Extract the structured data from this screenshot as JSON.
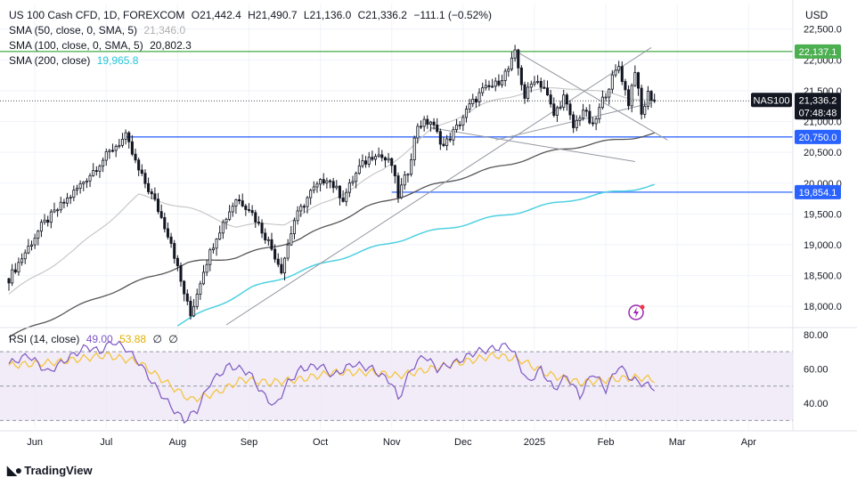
{
  "header": {
    "symbol": "US 100 Cash CFD, 1D, FOREXCOM",
    "open": "O21,442.4",
    "high": "H21,490.7",
    "low": "L21,136.0",
    "close": "C21,336.2",
    "change": "−111.1 (−0.52%)",
    "sma50_label": "SMA (50, close, 0, SMA, 5)",
    "sma50_value": "21,346.0",
    "sma100_label": "SMA (100, close, 0, SMA, 5)",
    "sma100_value": "20,802.3",
    "sma200_label": "SMA (200, close)",
    "sma200_value": "19,965.8",
    "rsi_label": "RSI (14, close)",
    "rsi_value": "49.00",
    "rsi_ma_value": "53.88",
    "rsi_extra1": "∅",
    "rsi_extra2": "∅",
    "currency": "USD"
  },
  "colors": {
    "up": "#131722",
    "down": "#131722",
    "green_line": "#4caf50",
    "blue_line": "#2962ff",
    "sma50": "#c8c8c8",
    "sma100": "#555555",
    "sma200": "#4dd0e1",
    "rsi": "#7e57c2",
    "rsi_ma": "#f5c542",
    "rsi_bg": "#ede7f6",
    "nas_label_bg": "#131722"
  },
  "chart_data": [
    {
      "type": "candlestick",
      "title": "US 100 Cash CFD, 1D, FOREXCOM",
      "x_tick_labels": [
        "Jun",
        "Jul",
        "Aug",
        "Sep",
        "Oct",
        "Nov",
        "Dec",
        "2025",
        "Feb",
        "Mar",
        "Apr"
      ],
      "x_tick_index": [
        8,
        30,
        52,
        74,
        96,
        118,
        140,
        162,
        184,
        206,
        228
      ],
      "ylim": [
        17700,
        22900
      ],
      "y_ticks": [
        18000,
        18500,
        19000,
        19500,
        20000,
        20500,
        21000,
        21500,
        22000,
        22500
      ],
      "y_tick_labels": [
        "18,000.0",
        "18,500.0",
        "19,000.0",
        "19,500.0",
        "20,000.0",
        "20,500.0",
        "21,000.0",
        "21,500.0",
        "22,000.0",
        "22,500.0"
      ],
      "key_points": [
        [
          0,
          18450
        ],
        [
          10,
          19300
        ],
        [
          20,
          19850
        ],
        [
          32,
          20560
        ],
        [
          36,
          20750
        ],
        [
          40,
          20200
        ],
        [
          45,
          19700
        ],
        [
          50,
          19050
        ],
        [
          53,
          18400
        ],
        [
          56,
          17850
        ],
        [
          60,
          18600
        ],
        [
          64,
          19150
        ],
        [
          70,
          19750
        ],
        [
          74,
          19600
        ],
        [
          80,
          19050
        ],
        [
          84,
          18600
        ],
        [
          88,
          19400
        ],
        [
          93,
          19850
        ],
        [
          98,
          20100
        ],
        [
          103,
          19750
        ],
        [
          108,
          20250
        ],
        [
          113,
          20500
        ],
        [
          118,
          20300
        ],
        [
          120,
          19800
        ],
        [
          123,
          20200
        ],
        [
          126,
          20950
        ],
        [
          130,
          21000
        ],
        [
          134,
          20600
        ],
        [
          138,
          20900
        ],
        [
          142,
          21250
        ],
        [
          146,
          21500
        ],
        [
          150,
          21600
        ],
        [
          154,
          21850
        ],
        [
          156,
          22100
        ],
        [
          159,
          21400
        ],
        [
          162,
          21700
        ],
        [
          165,
          21550
        ],
        [
          168,
          21100
        ],
        [
          171,
          21400
        ],
        [
          174,
          20900
        ],
        [
          177,
          21200
        ],
        [
          180,
          20900
        ],
        [
          183,
          21350
        ],
        [
          186,
          21700
        ],
        [
          188,
          21900
        ],
        [
          191,
          21300
        ],
        [
          193,
          21850
        ],
        [
          195,
          21100
        ],
        [
          197,
          21450
        ],
        [
          199,
          21336.2
        ]
      ],
      "sma50_points": [
        [
          0,
          18200
        ],
        [
          20,
          18900
        ],
        [
          40,
          19800
        ],
        [
          55,
          19600
        ],
        [
          70,
          19300
        ],
        [
          85,
          19350
        ],
        [
          100,
          19750
        ],
        [
          115,
          20200
        ],
        [
          130,
          20850
        ],
        [
          145,
          21250
        ],
        [
          160,
          21500
        ],
        [
          175,
          21550
        ],
        [
          190,
          21400
        ],
        [
          199,
          21346
        ]
      ],
      "sma100_points": [
        [
          0,
          17500
        ],
        [
          30,
          18200
        ],
        [
          55,
          18700
        ],
        [
          70,
          18800
        ],
        [
          90,
          19100
        ],
        [
          110,
          19600
        ],
        [
          130,
          19950
        ],
        [
          150,
          20250
        ],
        [
          170,
          20550
        ],
        [
          185,
          20680
        ],
        [
          199,
          20802.3
        ]
      ],
      "sma200_points": [
        [
          52,
          17700
        ],
        [
          75,
          18300
        ],
        [
          100,
          18750
        ],
        [
          125,
          19150
        ],
        [
          150,
          19450
        ],
        [
          175,
          19750
        ],
        [
          199,
          19965.8
        ]
      ],
      "horizontal_levels": [
        {
          "value": 22137.1,
          "label": "22,137.1",
          "color": "green"
        },
        {
          "value": 20750.0,
          "label": "20,750.0",
          "color": "blue"
        },
        {
          "value": 19854.1,
          "label": "19,854.1",
          "color": "blue"
        }
      ],
      "trendlines": [
        [
          [
            67,
            17700
          ],
          [
            198,
            22200
          ]
        ],
        [
          [
            156,
            22150
          ],
          [
            203,
            20700
          ]
        ],
        [
          [
            130,
            20900
          ],
          [
            193,
            20350
          ]
        ],
        [
          [
            150,
            20700
          ],
          [
            198,
            21300
          ]
        ]
      ],
      "last_label": "NAS100",
      "last_value": "21,336.2",
      "countdown": "07:48:48"
    },
    {
      "type": "line",
      "title": "RSI (14, close)",
      "ylim": [
        25,
        82
      ],
      "y_ticks": [
        40,
        60,
        80
      ],
      "y_tick_labels": [
        "40.00",
        "60.00",
        "80.00"
      ],
      "band_upper": 70,
      "band_lower": 30,
      "mid_line": 50,
      "series": [
        {
          "name": "RSI",
          "points": [
            [
              0,
              63
            ],
            [
              6,
              68
            ],
            [
              12,
              58
            ],
            [
              18,
              66
            ],
            [
              24,
              73
            ],
            [
              28,
              70
            ],
            [
              32,
              76
            ],
            [
              36,
              72
            ],
            [
              40,
              64
            ],
            [
              45,
              50
            ],
            [
              50,
              38
            ],
            [
              54,
              30
            ],
            [
              58,
              36
            ],
            [
              62,
              52
            ],
            [
              68,
              62
            ],
            [
              74,
              58
            ],
            [
              78,
              46
            ],
            [
              82,
              38
            ],
            [
              86,
              52
            ],
            [
              90,
              60
            ],
            [
              96,
              62
            ],
            [
              100,
              56
            ],
            [
              106,
              63
            ],
            [
              112,
              60
            ],
            [
              118,
              52
            ],
            [
              120,
              42
            ],
            [
              124,
              60
            ],
            [
              128,
              68
            ],
            [
              132,
              60
            ],
            [
              138,
              64
            ],
            [
              144,
              70
            ],
            [
              150,
              72
            ],
            [
              154,
              74
            ],
            [
              156,
              68
            ],
            [
              160,
              52
            ],
            [
              164,
              60
            ],
            [
              168,
              48
            ],
            [
              172,
              56
            ],
            [
              176,
              44
            ],
            [
              180,
              58
            ],
            [
              184,
              48
            ],
            [
              188,
              62
            ],
            [
              192,
              54
            ],
            [
              196,
              51
            ],
            [
              199,
              49
            ]
          ]
        },
        {
          "name": "RSI-based MA",
          "points": [
            [
              0,
              62
            ],
            [
              15,
              64
            ],
            [
              30,
              68
            ],
            [
              40,
              64
            ],
            [
              50,
              50
            ],
            [
              56,
              42
            ],
            [
              64,
              46
            ],
            [
              72,
              54
            ],
            [
              80,
              52
            ],
            [
              90,
              54
            ],
            [
              100,
              58
            ],
            [
              112,
              58
            ],
            [
              120,
              56
            ],
            [
              130,
              60
            ],
            [
              140,
              64
            ],
            [
              150,
              68
            ],
            [
              158,
              65
            ],
            [
              166,
              57
            ],
            [
              176,
              52
            ],
            [
              186,
              54
            ],
            [
              194,
              55
            ],
            [
              199,
              53.88
            ]
          ]
        }
      ]
    }
  ]
}
